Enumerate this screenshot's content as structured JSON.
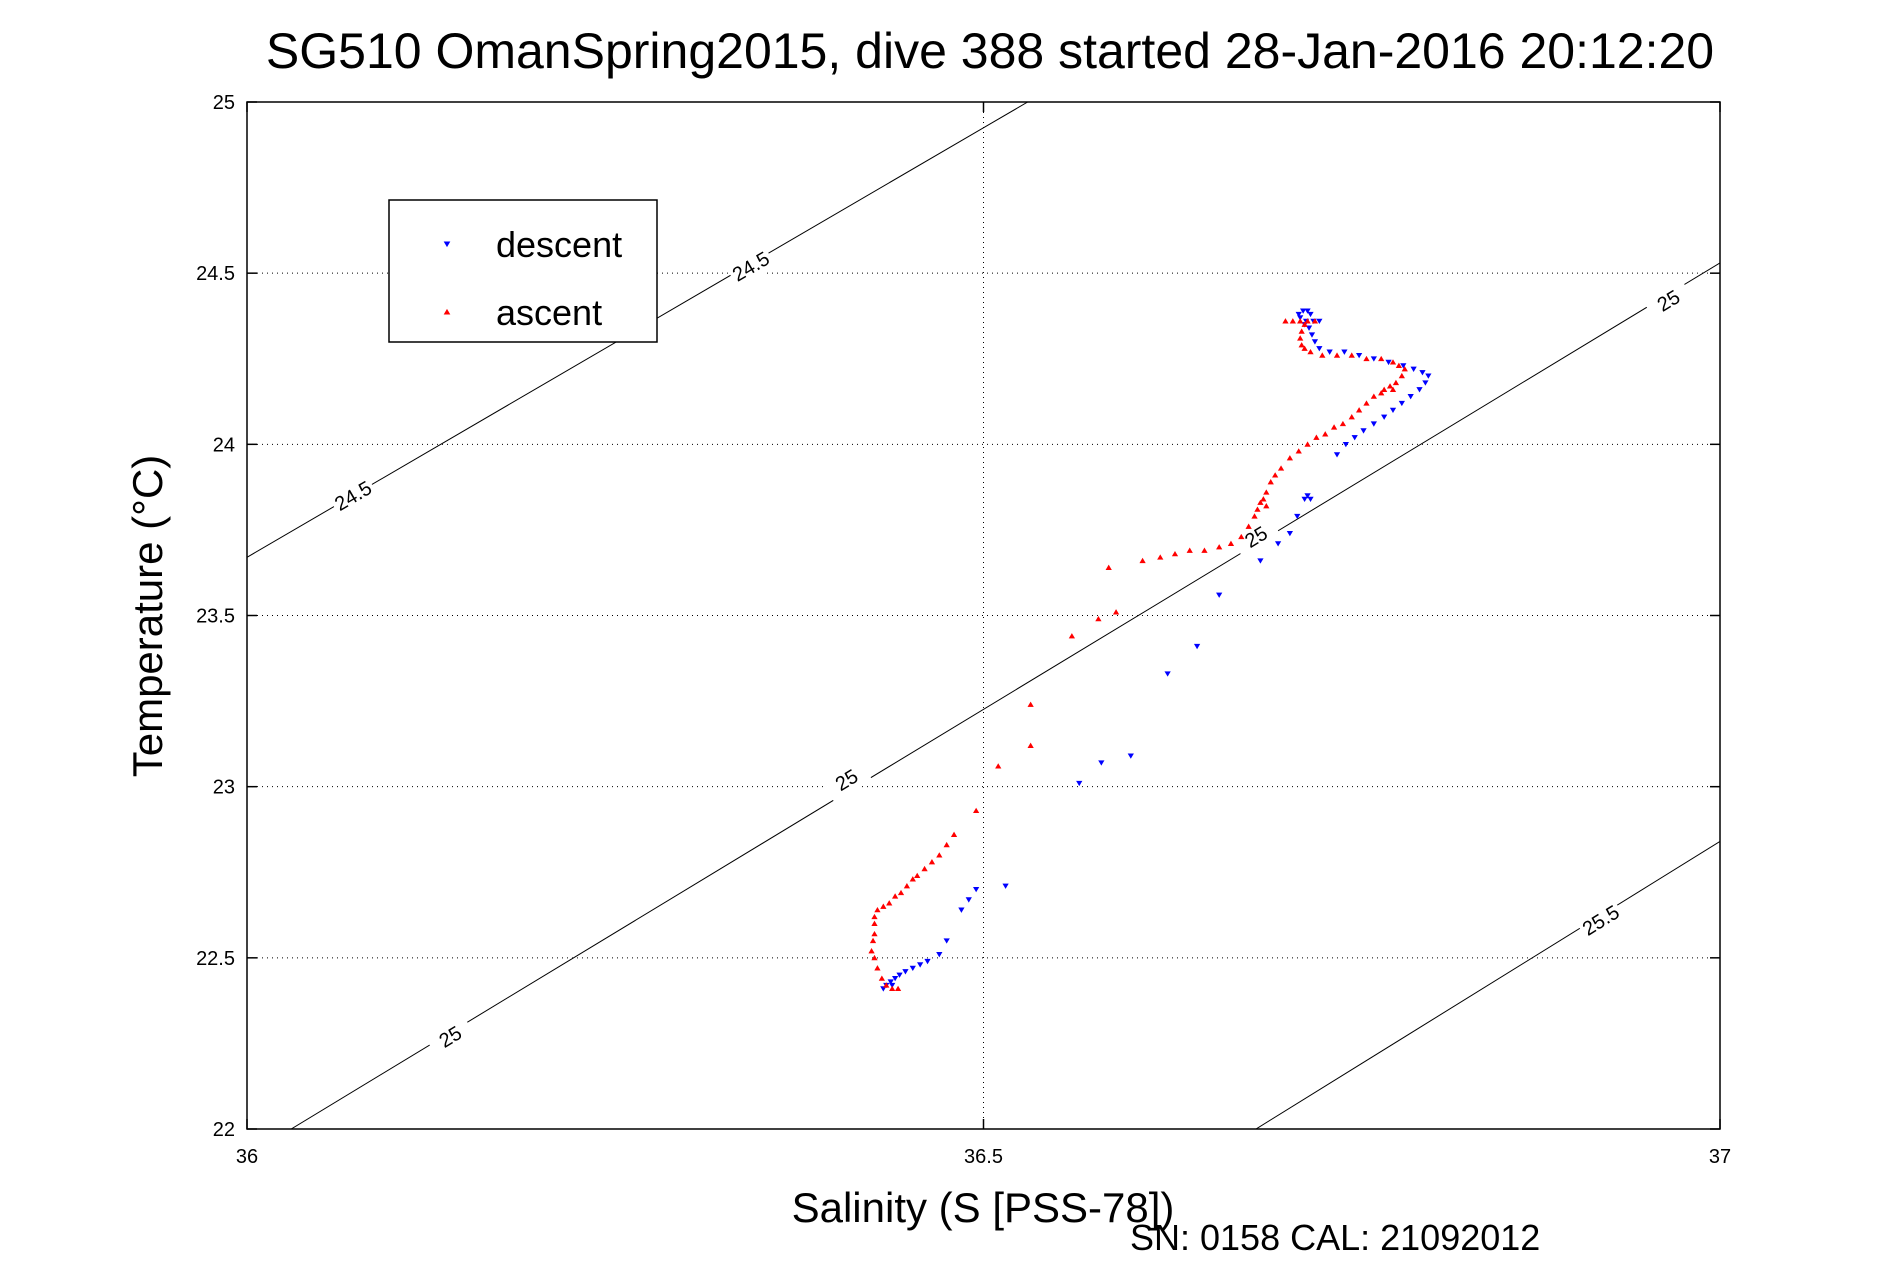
{
  "chart_data": {
    "type": "scatter",
    "title": "SG510 OmanSpring2015, dive 388 started 28-Jan-2016 20:12:20",
    "xlabel": "Salinity (S [PSS-78])",
    "ylabel": "Temperature (°C)",
    "xlim": [
      36,
      37
    ],
    "ylim": [
      22,
      25
    ],
    "xticks": [
      36,
      36.5,
      37
    ],
    "xtick_labels": [
      "36",
      "36.5",
      "37"
    ],
    "yticks": [
      22,
      22.5,
      23,
      23.5,
      24,
      24.5,
      25
    ],
    "ytick_labels": [
      "22",
      "22.5",
      "23",
      "23.5",
      "24",
      "24.5",
      "25"
    ],
    "grid": true,
    "legend_position": "top-left",
    "footer": "SN: 0158  CAL: 21092012",
    "colors": {
      "descent": "#0000ff",
      "ascent": "#ff0000",
      "axis": "#000000",
      "grid": "#000000"
    },
    "contours": [
      {
        "level": "24.5",
        "points": [
          [
            36,
            23.67
          ],
          [
            36.53,
            25
          ]
        ],
        "labels": [
          [
            36.072,
            23.85
          ],
          [
            36.342,
            24.52
          ]
        ]
      },
      {
        "level": "25",
        "points": [
          [
            36.03,
            22
          ],
          [
            37,
            24.53
          ]
        ],
        "labels": [
          [
            36.138,
            22.27
          ],
          [
            36.407,
            23.02
          ],
          [
            36.685,
            23.73
          ],
          [
            36.965,
            24.42
          ]
        ]
      },
      {
        "level": "25.5",
        "points": [
          [
            36.685,
            22
          ],
          [
            37,
            22.84
          ]
        ],
        "labels": [
          [
            36.919,
            22.61
          ]
        ]
      }
    ],
    "series": [
      {
        "name": "descent",
        "marker": "triangle-down",
        "points": [
          [
            36.717,
            24.39
          ],
          [
            36.72,
            24.39
          ],
          [
            36.714,
            24.38
          ],
          [
            36.722,
            24.38
          ],
          [
            36.715,
            24.37
          ],
          [
            36.719,
            24.36
          ],
          [
            36.724,
            24.36
          ],
          [
            36.728,
            24.36
          ],
          [
            36.718,
            24.35
          ],
          [
            36.721,
            24.34
          ],
          [
            36.723,
            24.32
          ],
          [
            36.725,
            24.3
          ],
          [
            36.728,
            24.28
          ],
          [
            36.735,
            24.27
          ],
          [
            36.745,
            24.27
          ],
          [
            36.755,
            24.26
          ],
          [
            36.765,
            24.25
          ],
          [
            36.775,
            24.24
          ],
          [
            36.785,
            24.23
          ],
          [
            36.792,
            24.22
          ],
          [
            36.798,
            24.21
          ],
          [
            36.802,
            24.2
          ],
          [
            36.8,
            24.18
          ],
          [
            36.796,
            24.16
          ],
          [
            36.79,
            24.14
          ],
          [
            36.784,
            24.12
          ],
          [
            36.778,
            24.1
          ],
          [
            36.772,
            24.08
          ],
          [
            36.765,
            24.06
          ],
          [
            36.758,
            24.04
          ],
          [
            36.752,
            24.02
          ],
          [
            36.746,
            24.0
          ],
          [
            36.74,
            23.97
          ],
          [
            36.72,
            23.85
          ],
          [
            36.718,
            23.84
          ],
          [
            36.722,
            23.84
          ],
          [
            36.713,
            23.79
          ],
          [
            36.708,
            23.74
          ],
          [
            36.7,
            23.71
          ],
          [
            36.688,
            23.66
          ],
          [
            36.66,
            23.56
          ],
          [
            36.645,
            23.41
          ],
          [
            36.625,
            23.33
          ],
          [
            36.6,
            23.09
          ],
          [
            36.58,
            23.07
          ],
          [
            36.565,
            23.01
          ],
          [
            36.515,
            22.71
          ],
          [
            36.495,
            22.7
          ],
          [
            36.49,
            22.67
          ],
          [
            36.485,
            22.64
          ],
          [
            36.475,
            22.55
          ],
          [
            36.47,
            22.51
          ],
          [
            36.462,
            22.49
          ],
          [
            36.457,
            22.48
          ],
          [
            36.452,
            22.47
          ],
          [
            36.447,
            22.46
          ],
          [
            36.443,
            22.45
          ],
          [
            36.44,
            22.44
          ],
          [
            36.437,
            22.43
          ],
          [
            36.434,
            22.42
          ],
          [
            36.432,
            22.41
          ],
          [
            36.438,
            22.42
          ]
        ]
      },
      {
        "name": "ascent",
        "marker": "triangle-up",
        "points": [
          [
            36.705,
            24.36
          ],
          [
            36.71,
            24.36
          ],
          [
            36.715,
            24.36
          ],
          [
            36.72,
            24.36
          ],
          [
            36.725,
            24.36
          ],
          [
            36.718,
            24.35
          ],
          [
            36.716,
            24.33
          ],
          [
            36.715,
            24.31
          ],
          [
            36.716,
            24.29
          ],
          [
            36.718,
            24.28
          ],
          [
            36.722,
            24.27
          ],
          [
            36.73,
            24.26
          ],
          [
            36.74,
            24.26
          ],
          [
            36.75,
            24.26
          ],
          [
            36.76,
            24.25
          ],
          [
            36.77,
            24.25
          ],
          [
            36.778,
            24.24
          ],
          [
            36.782,
            24.23
          ],
          [
            36.786,
            24.22
          ],
          [
            36.784,
            24.2
          ],
          [
            36.78,
            24.18
          ],
          [
            36.776,
            24.17
          ],
          [
            36.772,
            24.16
          ],
          [
            36.778,
            24.16
          ],
          [
            36.77,
            24.15
          ],
          [
            36.765,
            24.14
          ],
          [
            36.76,
            24.12
          ],
          [
            36.755,
            24.1
          ],
          [
            36.75,
            24.08
          ],
          [
            36.744,
            24.06
          ],
          [
            36.738,
            24.05
          ],
          [
            36.732,
            24.03
          ],
          [
            36.726,
            24.02
          ],
          [
            36.72,
            24.0
          ],
          [
            36.714,
            23.98
          ],
          [
            36.708,
            23.96
          ],
          [
            36.702,
            23.93
          ],
          [
            36.698,
            23.91
          ],
          [
            36.695,
            23.89
          ],
          [
            36.692,
            23.86
          ],
          [
            36.69,
            23.84
          ],
          [
            36.688,
            23.83
          ],
          [
            36.692,
            23.82
          ],
          [
            36.686,
            23.81
          ],
          [
            36.684,
            23.79
          ],
          [
            36.68,
            23.76
          ],
          [
            36.675,
            23.73
          ],
          [
            36.668,
            23.71
          ],
          [
            36.66,
            23.7
          ],
          [
            36.65,
            23.69
          ],
          [
            36.64,
            23.69
          ],
          [
            36.63,
            23.68
          ],
          [
            36.62,
            23.67
          ],
          [
            36.608,
            23.66
          ],
          [
            36.585,
            23.64
          ],
          [
            36.59,
            23.51
          ],
          [
            36.578,
            23.49
          ],
          [
            36.56,
            23.44
          ],
          [
            36.532,
            23.24
          ],
          [
            36.532,
            23.12
          ],
          [
            36.51,
            23.06
          ],
          [
            36.495,
            22.93
          ],
          [
            36.48,
            22.86
          ],
          [
            36.475,
            22.83
          ],
          [
            36.47,
            22.8
          ],
          [
            36.465,
            22.78
          ],
          [
            36.46,
            22.76
          ],
          [
            36.455,
            22.74
          ],
          [
            36.452,
            22.73
          ],
          [
            36.448,
            22.71
          ],
          [
            36.444,
            22.69
          ],
          [
            36.44,
            22.68
          ],
          [
            36.436,
            22.66
          ],
          [
            36.432,
            22.65
          ],
          [
            36.428,
            22.64
          ],
          [
            36.426,
            22.62
          ],
          [
            36.426,
            22.6
          ],
          [
            36.426,
            22.57
          ],
          [
            36.425,
            22.55
          ],
          [
            36.424,
            22.52
          ],
          [
            36.426,
            22.5
          ],
          [
            36.428,
            22.47
          ],
          [
            36.431,
            22.44
          ],
          [
            36.434,
            22.42
          ],
          [
            36.438,
            22.41
          ],
          [
            36.442,
            22.41
          ]
        ]
      }
    ]
  }
}
